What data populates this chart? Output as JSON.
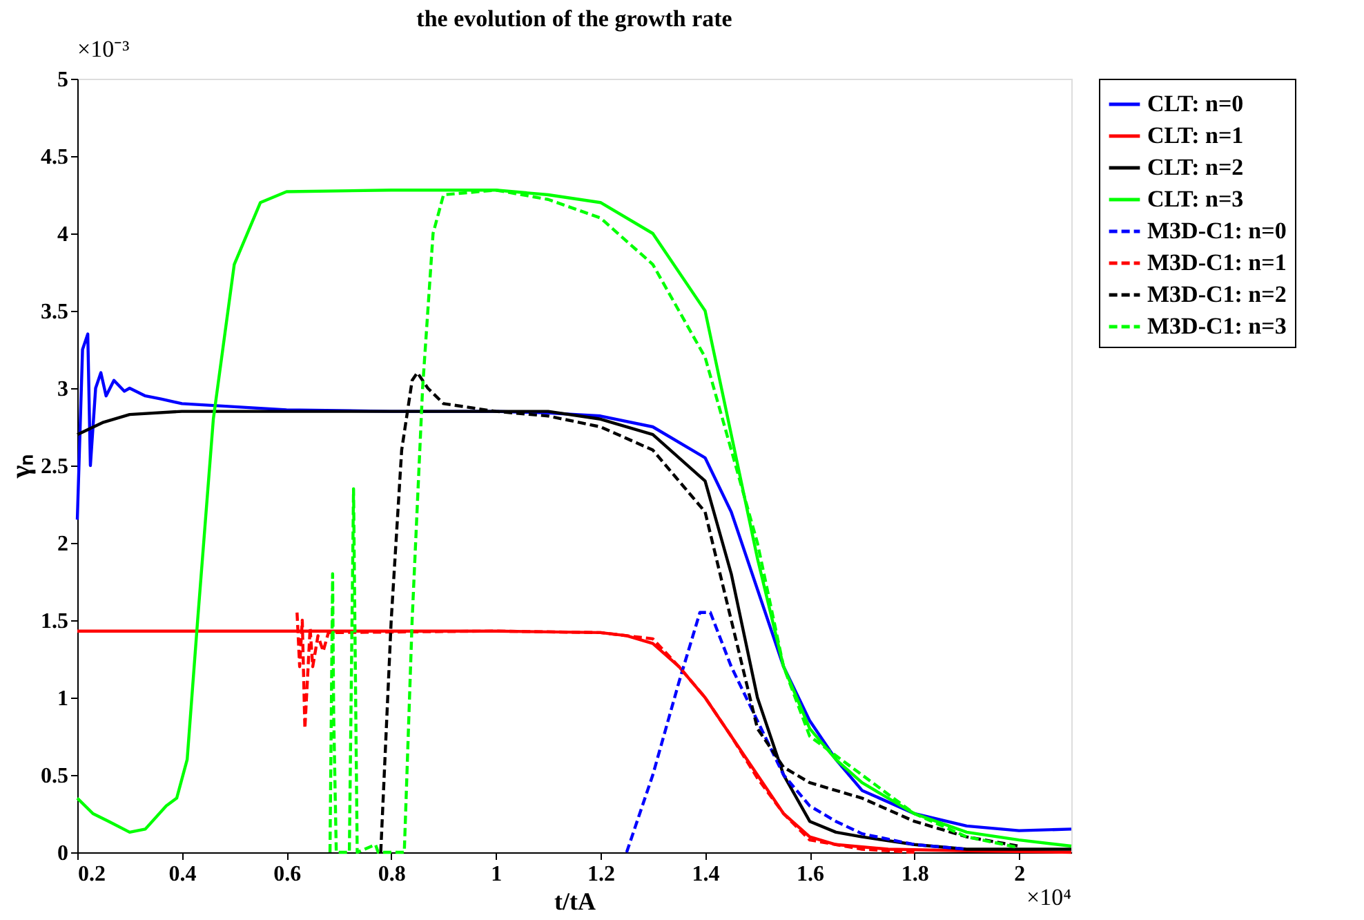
{
  "chart_data": {
    "type": "line",
    "title": "the evolution of the growth rate",
    "xlabel": "t/tA",
    "ylabel": "γₙ",
    "annotations": [
      "×10⁻³",
      "×10⁴"
    ],
    "xlim": [
      0.2,
      2.1
    ],
    "xticks": [
      0.2,
      0.4,
      0.6,
      0.8,
      1,
      1.2,
      1.4,
      1.6,
      1.8,
      2
    ],
    "ylim": [
      0,
      5
    ],
    "yticks": [
      0,
      0.5,
      1,
      1.5,
      2,
      2.5,
      3,
      3.5,
      4,
      4.5,
      5
    ],
    "grid": false,
    "legend": "right",
    "marker": "none",
    "series": [
      {
        "name": "CLT:  n=0",
        "color": "#0000ff",
        "line_style": "solid",
        "x": [
          0.2,
          0.21,
          0.22,
          0.225,
          0.235,
          0.245,
          0.255,
          0.27,
          0.29,
          0.3,
          0.33,
          0.36,
          0.4,
          0.5,
          0.6,
          0.8,
          1.0,
          1.1,
          1.2,
          1.3,
          1.4,
          1.45,
          1.5,
          1.55,
          1.6,
          1.65,
          1.7,
          1.8,
          1.9,
          2.0,
          2.1
        ],
        "values": [
          2.15,
          3.25,
          3.35,
          2.5,
          3.0,
          3.1,
          2.95,
          3.05,
          2.98,
          3.0,
          2.95,
          2.93,
          2.9,
          2.88,
          2.86,
          2.85,
          2.85,
          2.84,
          2.82,
          2.75,
          2.55,
          2.2,
          1.7,
          1.2,
          0.85,
          0.6,
          0.4,
          0.25,
          0.17,
          0.14,
          0.15
        ]
      },
      {
        "name": "CLT:  n=1",
        "color": "#ff0000",
        "line_style": "solid",
        "x": [
          0.2,
          0.6,
          1.0,
          1.2,
          1.25,
          1.3,
          1.35,
          1.4,
          1.45,
          1.5,
          1.55,
          1.6,
          1.65,
          1.75,
          1.9,
          2.1
        ],
        "values": [
          1.43,
          1.43,
          1.43,
          1.42,
          1.4,
          1.35,
          1.2,
          1.0,
          0.75,
          0.5,
          0.25,
          0.1,
          0.05,
          0.02,
          0.01,
          0.0
        ]
      },
      {
        "name": "CLT:  n=2",
        "color": "#000000",
        "line_style": "solid",
        "x": [
          0.2,
          0.25,
          0.3,
          0.4,
          0.8,
          1.1,
          1.2,
          1.3,
          1.4,
          1.45,
          1.5,
          1.55,
          1.6,
          1.65,
          1.7,
          1.8,
          1.9,
          2.1
        ],
        "values": [
          2.7,
          2.78,
          2.83,
          2.85,
          2.85,
          2.85,
          2.8,
          2.7,
          2.4,
          1.8,
          1.0,
          0.5,
          0.2,
          0.13,
          0.1,
          0.05,
          0.02,
          0.02
        ]
      },
      {
        "name": "CLT:  n=3",
        "color": "#00ff00",
        "line_style": "solid",
        "x": [
          0.2,
          0.23,
          0.26,
          0.3,
          0.33,
          0.37,
          0.39,
          0.41,
          0.43,
          0.46,
          0.5,
          0.55,
          0.6,
          0.8,
          1.0,
          1.1,
          1.2,
          1.3,
          1.4,
          1.45,
          1.5,
          1.55,
          1.6,
          1.65,
          1.7,
          1.8,
          1.9,
          2.0,
          2.1
        ],
        "values": [
          0.35,
          0.25,
          0.2,
          0.13,
          0.15,
          0.3,
          0.35,
          0.6,
          1.5,
          2.8,
          3.8,
          4.2,
          4.27,
          4.28,
          4.28,
          4.25,
          4.2,
          4.0,
          3.5,
          2.7,
          1.9,
          1.2,
          0.8,
          0.6,
          0.45,
          0.25,
          0.13,
          0.08,
          0.04
        ]
      },
      {
        "name": "M3D-C1: n=0",
        "color": "#0000ff",
        "line_style": "dashed",
        "x": [
          1.25,
          1.3,
          1.35,
          1.39,
          1.41,
          1.45,
          1.5,
          1.55,
          1.6,
          1.65,
          1.7,
          1.8,
          1.9
        ],
        "values": [
          0.0,
          0.5,
          1.1,
          1.55,
          1.55,
          1.2,
          0.85,
          0.5,
          0.3,
          0.2,
          0.12,
          0.05,
          0.02
        ]
      },
      {
        "name": "M3D-C1: n=1",
        "color": "#ff0000",
        "line_style": "dashed",
        "x": [
          0.62,
          0.625,
          0.63,
          0.635,
          0.645,
          0.65,
          0.66,
          0.67,
          0.68,
          1.0,
          1.2,
          1.3,
          1.35,
          1.4,
          1.45,
          1.5,
          1.55,
          1.6,
          1.7,
          1.8
        ],
        "values": [
          1.55,
          1.2,
          1.5,
          0.8,
          1.45,
          1.2,
          1.4,
          1.3,
          1.42,
          1.43,
          1.42,
          1.38,
          1.2,
          1.0,
          0.75,
          0.48,
          0.25,
          0.08,
          0.02,
          0.0
        ]
      },
      {
        "name": "M3D-C1: n=2",
        "color": "#000000",
        "line_style": "dashed",
        "x": [
          0.78,
          0.8,
          0.82,
          0.84,
          0.85,
          0.87,
          0.9,
          1.0,
          1.1,
          1.2,
          1.3,
          1.4,
          1.45,
          1.5,
          1.55,
          1.6,
          1.7,
          1.8,
          1.9,
          2.0
        ],
        "values": [
          0.0,
          1.5,
          2.6,
          3.05,
          3.1,
          3.0,
          2.9,
          2.85,
          2.82,
          2.75,
          2.6,
          2.2,
          1.5,
          0.8,
          0.55,
          0.45,
          0.35,
          0.2,
          0.1,
          0.04
        ]
      },
      {
        "name": "M3D-C1: n=3",
        "color": "#00ff00",
        "line_style": "dashed",
        "x": [
          0.683,
          0.688,
          0.69,
          0.695,
          0.72,
          0.728,
          0.735,
          0.77,
          0.775,
          0.825,
          0.84,
          0.86,
          0.88,
          0.9,
          1.0,
          1.1,
          1.2,
          1.3,
          1.4,
          1.5,
          1.55,
          1.6,
          1.7,
          1.8,
          1.9,
          2.0
        ],
        "values": [
          0.0,
          1.8,
          0.9,
          0.0,
          0.0,
          2.35,
          0.0,
          0.05,
          0.0,
          0.0,
          1.5,
          3.0,
          4.0,
          4.25,
          4.28,
          4.22,
          4.1,
          3.8,
          3.2,
          2.0,
          1.2,
          0.75,
          0.5,
          0.25,
          0.1,
          0.03
        ]
      }
    ]
  }
}
